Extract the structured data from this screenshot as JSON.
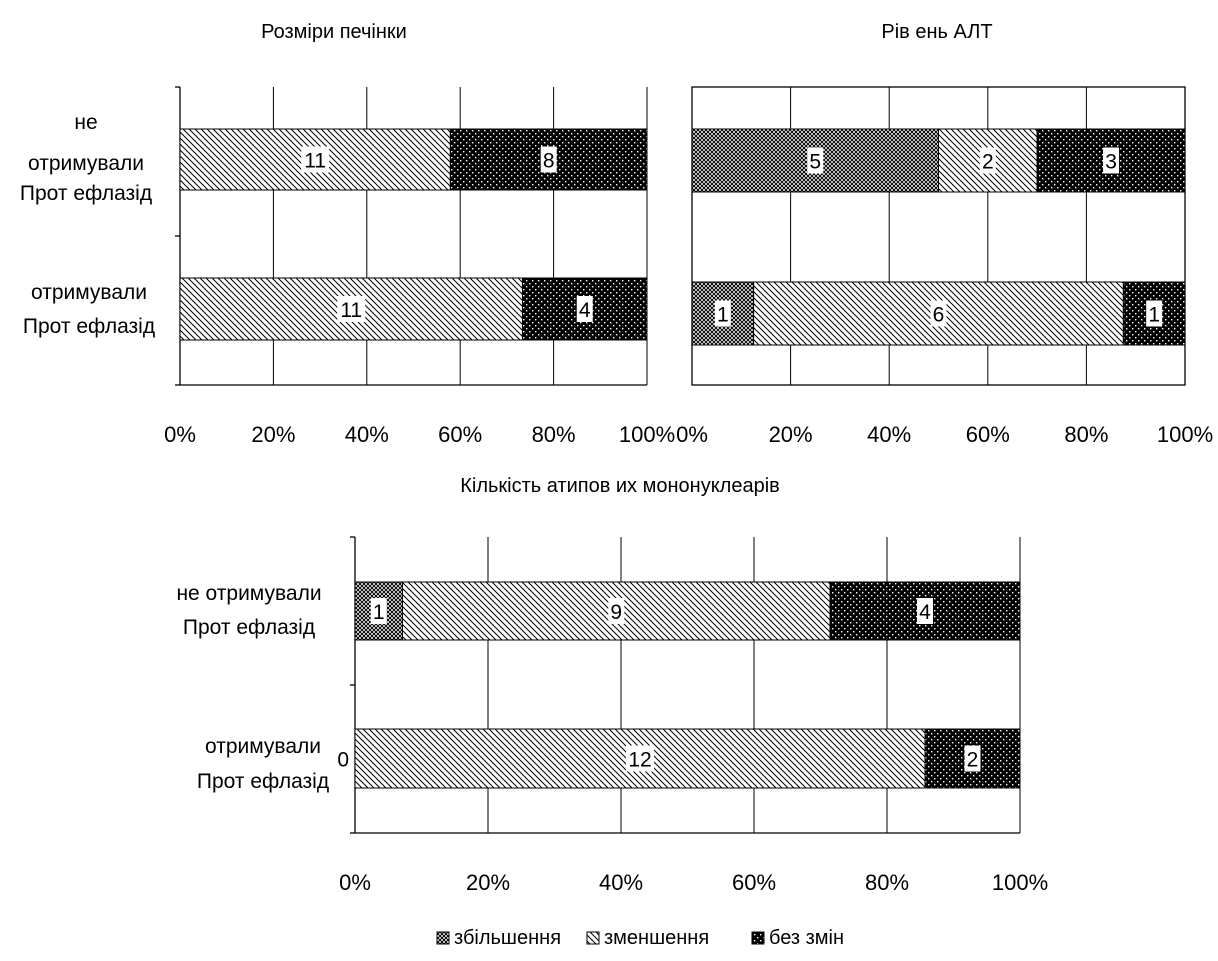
{
  "chart_data": [
    {
      "type": "bar",
      "orientation": "horizontal",
      "stacked": "percent",
      "title": "Розміри печінки",
      "categories": [
        [
          "не",
          "отримували",
          "Прот ефлазід"
        ],
        [
          "отримували",
          "Прот ефлазід"
        ]
      ],
      "series": [
        {
          "name": "зменшення",
          "values": [
            11,
            11
          ]
        },
        {
          "name": "без змін",
          "values": [
            8,
            4
          ]
        }
      ],
      "xlim": [
        0,
        100
      ],
      "xticks": [
        "0%",
        "20%",
        "40%",
        "60%",
        "80%",
        "100%"
      ],
      "grid": true
    },
    {
      "type": "bar",
      "orientation": "horizontal",
      "stacked": "percent",
      "title": "Рів ень АЛТ",
      "categories": [
        [],
        []
      ],
      "series": [
        {
          "name": "збільшення",
          "values": [
            5,
            1
          ]
        },
        {
          "name": "зменшення",
          "values": [
            2,
            6
          ]
        },
        {
          "name": "без змін",
          "values": [
            3,
            1
          ]
        }
      ],
      "xlim": [
        0,
        100
      ],
      "xticks": [
        "0%",
        "20%",
        "40%",
        "60%",
        "80%",
        "100%"
      ],
      "grid": true
    },
    {
      "type": "bar",
      "orientation": "horizontal",
      "stacked": "percent",
      "title": "Кількість атипов их мононуклеарів",
      "categories": [
        [
          "не отримували",
          "Прот ефлазід"
        ],
        [
          "отримували",
          "Прот ефлазід"
        ]
      ],
      "series": [
        {
          "name": "збільшення",
          "values": [
            1,
            0
          ]
        },
        {
          "name": "зменшення",
          "values": [
            9,
            12
          ]
        },
        {
          "name": "без змін",
          "values": [
            4,
            2
          ]
        }
      ],
      "xlim": [
        0,
        100
      ],
      "xticks": [
        "0%",
        "20%",
        "40%",
        "60%",
        "80%",
        "100%"
      ],
      "grid": true
    }
  ],
  "legend": {
    "placement": "bottom",
    "items": [
      {
        "name": "збільшення",
        "pattern": "crosshatch"
      },
      {
        "name": "зменшення",
        "pattern": "diagonal"
      },
      {
        "name": "без змін",
        "pattern": "dots"
      }
    ]
  }
}
